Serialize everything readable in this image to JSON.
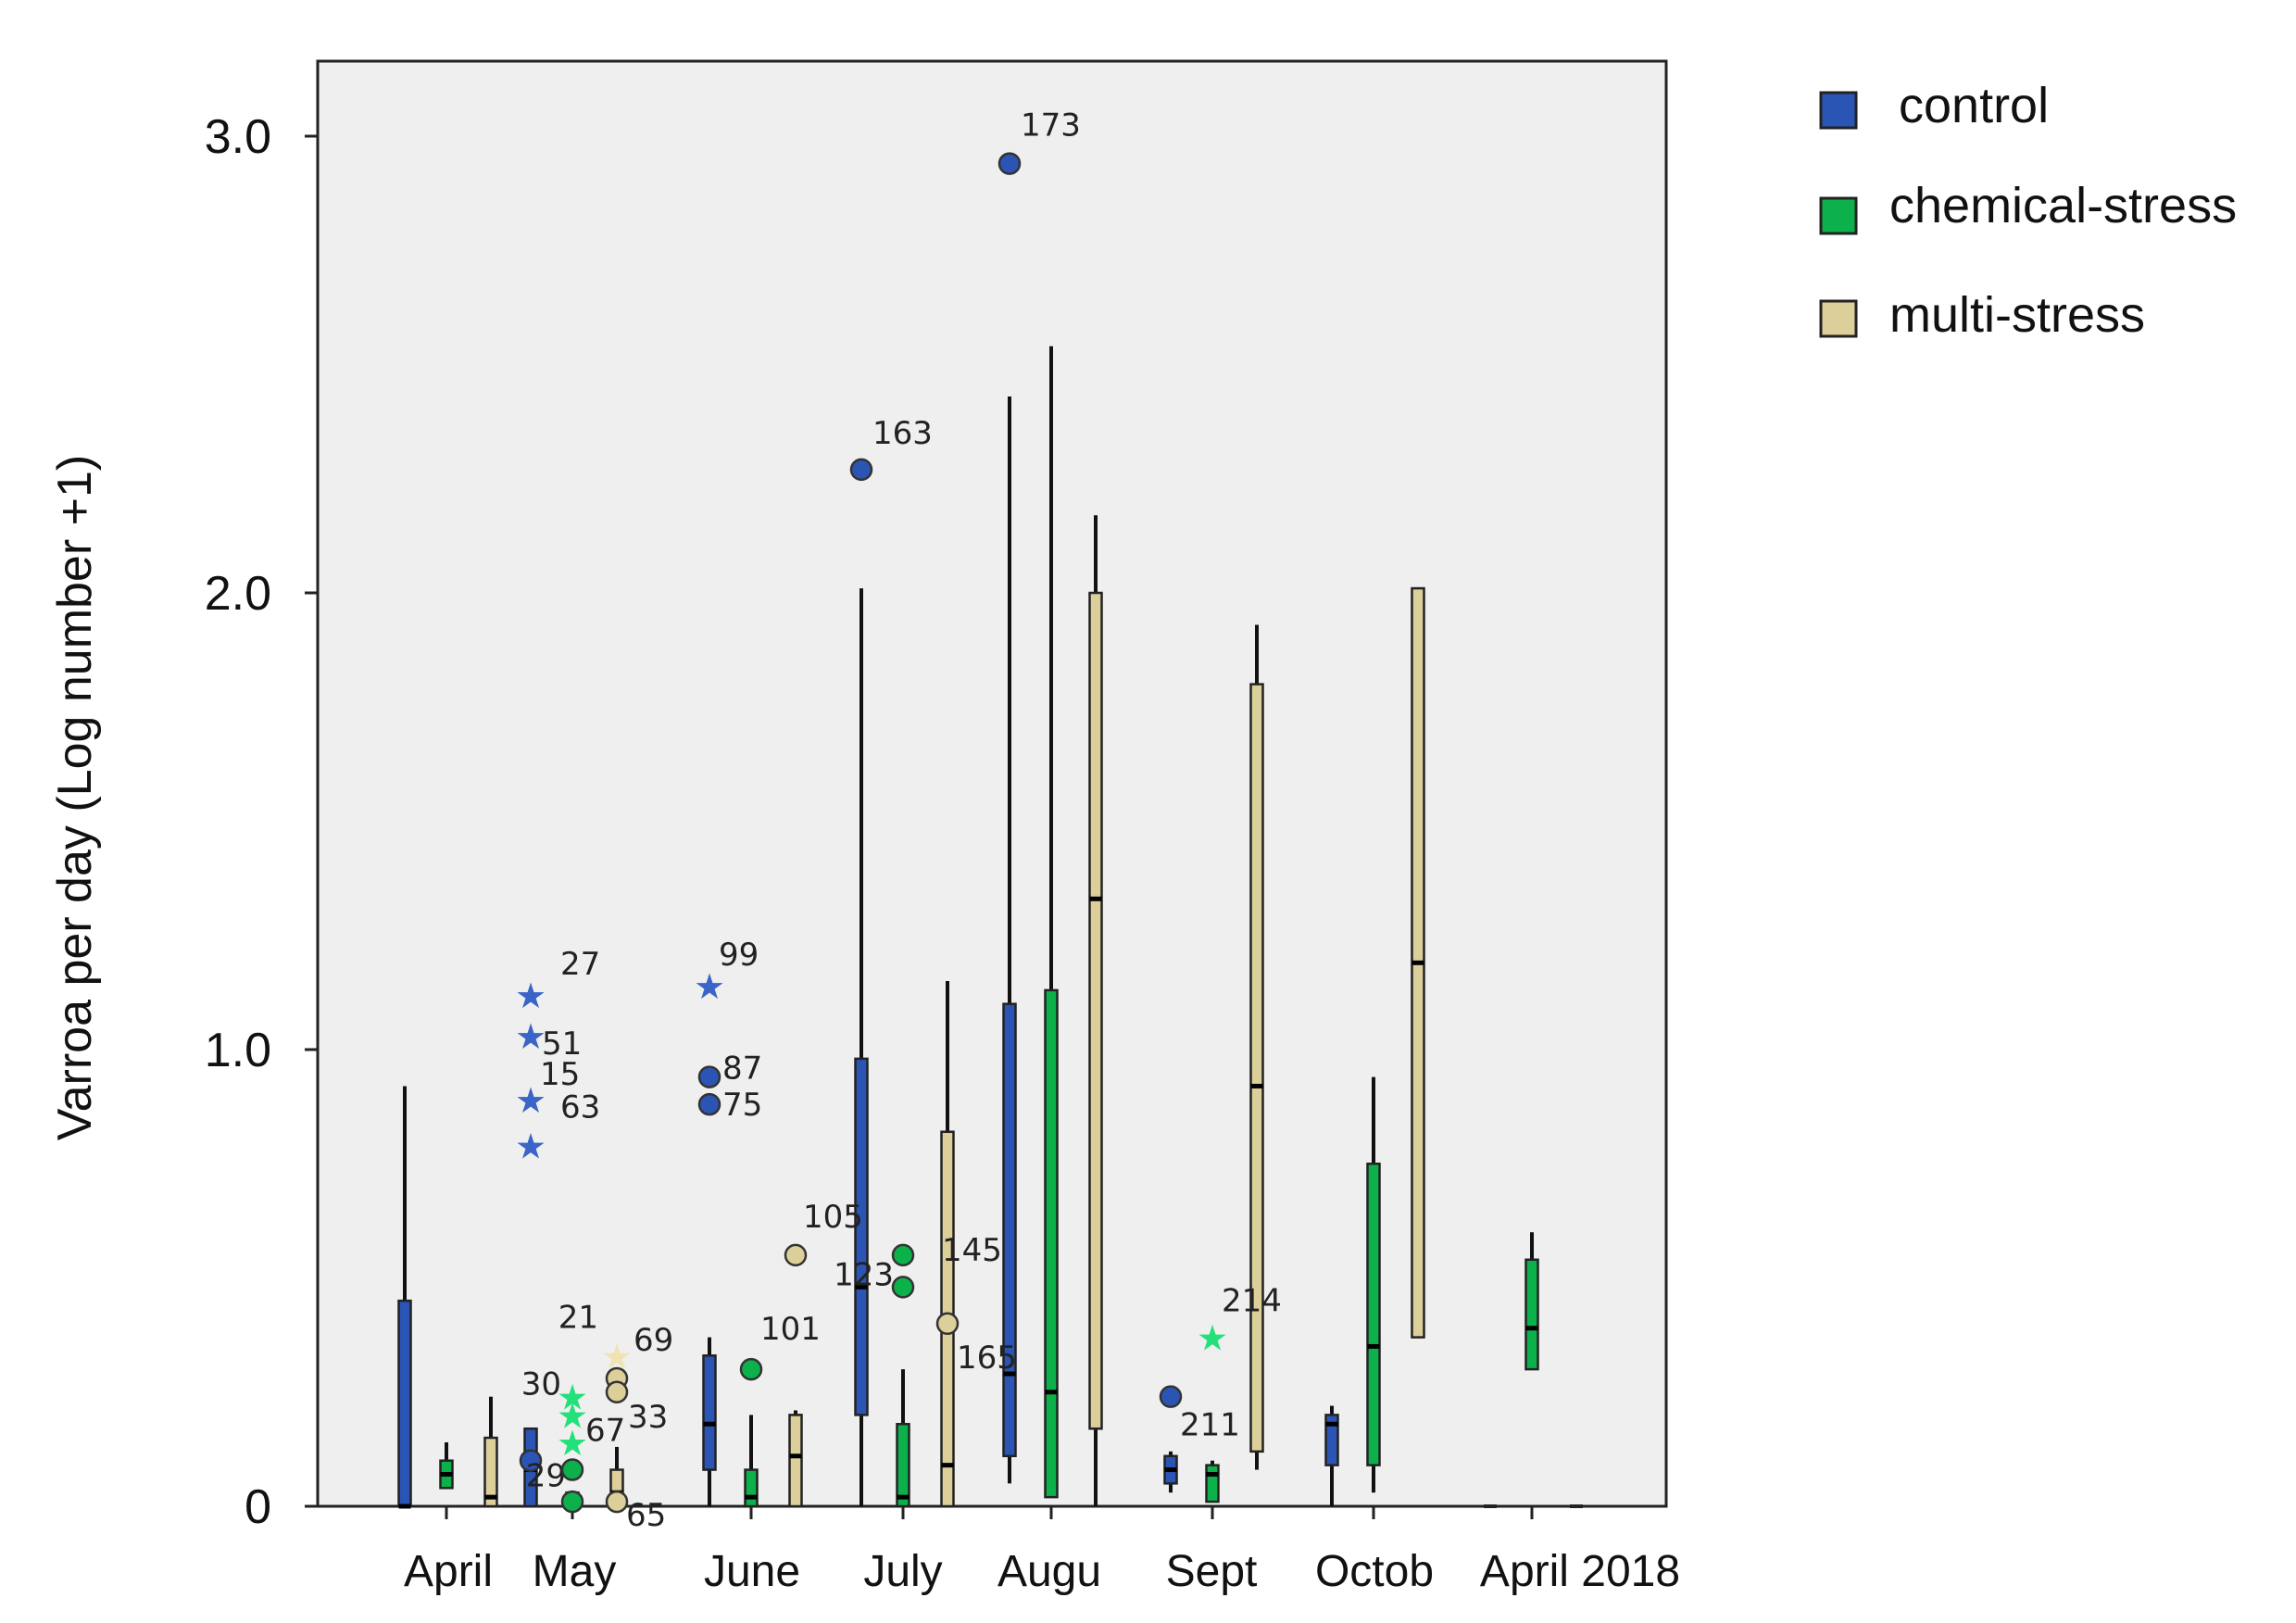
{
  "chart_data": {
    "type": "boxplot",
    "ylabel": "Varroa per day (Log number +1)",
    "xlabel": "",
    "ylim": [
      0,
      3.15
    ],
    "yticks": [
      {
        "value": 0,
        "label": "0"
      },
      {
        "value": 1,
        "label": "1.0"
      },
      {
        "value": 2,
        "label": "2.0"
      },
      {
        "value": 3,
        "label": "3.0"
      }
    ],
    "categories": [
      "April",
      "May",
      "June",
      "July",
      "Augu",
      "Sept",
      "Octob",
      "April 2018"
    ],
    "series": [
      {
        "name": "control",
        "color": "#2a55b5"
      },
      {
        "name": "chemical-stress",
        "color": "#0db14b"
      },
      {
        "name": "multi-stress",
        "color": "#dccf9a"
      }
    ],
    "boxes": [
      {
        "category": "April",
        "series": "control",
        "wl": 0,
        "q1": 0,
        "median": 0,
        "q3": 0.45,
        "wh": 0.92
      },
      {
        "category": "April",
        "series": "chemical-stress",
        "wl": 0.04,
        "q1": 0.04,
        "median": 0.07,
        "q3": 0.1,
        "wh": 0.14
      },
      {
        "category": "April",
        "series": "multi-stress",
        "wl": 0,
        "q1": 0,
        "median": 0.02,
        "q3": 0.15,
        "wh": 0.24
      },
      {
        "category": "May",
        "series": "control",
        "wl": 0,
        "q1": 0,
        "median": 0.08,
        "q3": 0.17,
        "wh": 0.17
      },
      {
        "category": "May",
        "series": "chemical-stress",
        "wl": 0,
        "q1": 0,
        "median": 0,
        "q3": 0.03,
        "wh": 0.03
      },
      {
        "category": "May",
        "series": "multi-stress",
        "wl": 0,
        "q1": 0,
        "median": 0.03,
        "q3": 0.08,
        "wh": 0.13
      },
      {
        "category": "June",
        "series": "control",
        "wl": 0,
        "q1": 0.08,
        "median": 0.18,
        "q3": 0.33,
        "wh": 0.37
      },
      {
        "category": "June",
        "series": "chemical-stress",
        "wl": 0,
        "q1": 0,
        "median": 0.02,
        "q3": 0.08,
        "wh": 0.2
      },
      {
        "category": "June",
        "series": "multi-stress",
        "wl": 0,
        "q1": 0,
        "median": 0.11,
        "q3": 0.2,
        "wh": 0.21
      },
      {
        "category": "July",
        "series": "control",
        "wl": 0,
        "q1": 0.2,
        "median": 0.48,
        "q3": 0.98,
        "wh": 2.01
      },
      {
        "category": "July",
        "series": "chemical-stress",
        "wl": 0,
        "q1": 0,
        "median": 0.02,
        "q3": 0.18,
        "wh": 0.3
      },
      {
        "category": "July",
        "series": "multi-stress",
        "wl": 0,
        "q1": 0,
        "median": 0.09,
        "q3": 0.82,
        "wh": 1.15
      },
      {
        "category": "Augu",
        "series": "control",
        "wl": 0.05,
        "q1": 0.11,
        "median": 0.29,
        "q3": 1.1,
        "wh": 2.43
      },
      {
        "category": "Augu",
        "series": "chemical-stress",
        "wl": 0.02,
        "q1": 0.02,
        "median": 0.25,
        "q3": 1.13,
        "wh": 2.54
      },
      {
        "category": "Augu",
        "series": "multi-stress",
        "wl": 0,
        "q1": 0.17,
        "median": 1.33,
        "q3": 2.0,
        "wh": 2.17
      },
      {
        "category": "Sept",
        "series": "control",
        "wl": 0.03,
        "q1": 0.05,
        "median": 0.08,
        "q3": 0.11,
        "wh": 0.12
      },
      {
        "category": "Sept",
        "series": "chemical-stress",
        "wl": 0.01,
        "q1": 0.01,
        "median": 0.07,
        "q3": 0.09,
        "wh": 0.1
      },
      {
        "category": "Sept",
        "series": "multi-stress",
        "wl": 0.08,
        "q1": 0.12,
        "median": 0.92,
        "q3": 1.8,
        "wh": 1.93
      },
      {
        "category": "Octob",
        "series": "control",
        "wl": 0,
        "q1": 0.09,
        "median": 0.18,
        "q3": 0.2,
        "wh": 0.22
      },
      {
        "category": "Octob",
        "series": "chemical-stress",
        "wl": 0.03,
        "q1": 0.09,
        "median": 0.35,
        "q3": 0.75,
        "wh": 0.94
      },
      {
        "category": "Octob",
        "series": "multi-stress",
        "wl": 0.37,
        "q1": 0.37,
        "median": 1.19,
        "q3": 2.01,
        "wh": 2.01
      },
      {
        "category": "April 2018",
        "series": "control",
        "wl": 0,
        "q1": 0,
        "median": 0,
        "q3": 0,
        "wh": 0
      },
      {
        "category": "April 2018",
        "series": "chemical-stress",
        "wl": 0.3,
        "q1": 0.3,
        "median": 0.39,
        "q3": 0.54,
        "wh": 0.6
      },
      {
        "category": "April 2018",
        "series": "multi-stress",
        "wl": 0,
        "q1": 0,
        "median": 0,
        "q3": 0,
        "wh": 0
      }
    ],
    "outliers": [
      {
        "category": "May",
        "series": "control",
        "kind": "extreme",
        "value": 1.12,
        "label": "27"
      },
      {
        "category": "May",
        "series": "control",
        "kind": "extreme",
        "value": 1.03,
        "label": "51"
      },
      {
        "category": "May",
        "series": "control",
        "kind": "extreme",
        "value": 0.89,
        "label": "15"
      },
      {
        "category": "May",
        "series": "control",
        "kind": "extreme",
        "value": 0.79,
        "label": "63"
      },
      {
        "category": "May",
        "series": "control",
        "kind": "outlier",
        "value": 0.1,
        "label": "29"
      },
      {
        "category": "May",
        "series": "chemical-stress",
        "kind": "extreme",
        "value": 0.24,
        "label": "30"
      },
      {
        "category": "May",
        "series": "chemical-stress",
        "kind": "extreme",
        "value": 0.2,
        "label": "67"
      },
      {
        "category": "May",
        "series": "chemical-stress",
        "kind": "extreme",
        "value": 0.14,
        "label": ""
      },
      {
        "category": "May",
        "series": "chemical-stress",
        "kind": "outlier",
        "value": 0.08,
        "label": ""
      },
      {
        "category": "May",
        "series": "chemical-stress",
        "kind": "outlier",
        "value": 0.01,
        "label": ""
      },
      {
        "category": "May",
        "series": "multi-stress",
        "kind": "extreme",
        "value": 0.33,
        "label": "21"
      },
      {
        "category": "May",
        "series": "multi-stress",
        "kind": "outlier",
        "value": 0.28,
        "label": "69"
      },
      {
        "category": "May",
        "series": "multi-stress",
        "kind": "outlier",
        "value": 0.25,
        "label": "33"
      },
      {
        "category": "May",
        "series": "multi-stress",
        "kind": "outlier",
        "value": 0.01,
        "label": "65"
      },
      {
        "category": "June",
        "series": "control",
        "kind": "extreme",
        "value": 1.14,
        "label": "99"
      },
      {
        "category": "June",
        "series": "control",
        "kind": "outlier",
        "value": 0.94,
        "label": "87"
      },
      {
        "category": "June",
        "series": "control",
        "kind": "outlier",
        "value": 0.88,
        "label": "75"
      },
      {
        "category": "June",
        "series": "chemical-stress",
        "kind": "outlier",
        "value": 0.3,
        "label": "101"
      },
      {
        "category": "June",
        "series": "multi-stress",
        "kind": "outlier",
        "value": 0.55,
        "label": "105"
      },
      {
        "category": "July",
        "series": "control",
        "kind": "outlier",
        "value": 2.27,
        "label": "163"
      },
      {
        "category": "July",
        "series": "chemical-stress",
        "kind": "outlier",
        "value": 0.55,
        "label": "145"
      },
      {
        "category": "July",
        "series": "chemical-stress",
        "kind": "outlier",
        "value": 0.48,
        "label": "123"
      },
      {
        "category": "July",
        "series": "multi-stress",
        "kind": "outlier",
        "value": 0.4,
        "label": "165"
      },
      {
        "category": "Augu",
        "series": "control",
        "kind": "outlier",
        "value": 2.94,
        "label": "173"
      },
      {
        "category": "Sept",
        "series": "control",
        "kind": "outlier",
        "value": 0.24,
        "label": "211"
      },
      {
        "category": "Sept",
        "series": "chemical-stress",
        "kind": "extreme",
        "value": 0.37,
        "label": "214"
      }
    ],
    "legend": [
      {
        "label": "control",
        "color": "#2a55b5"
      },
      {
        "label": "chemical-stress",
        "color": "#0db14b"
      },
      {
        "label": "multi-stress",
        "color": "#dccf9a"
      }
    ]
  }
}
